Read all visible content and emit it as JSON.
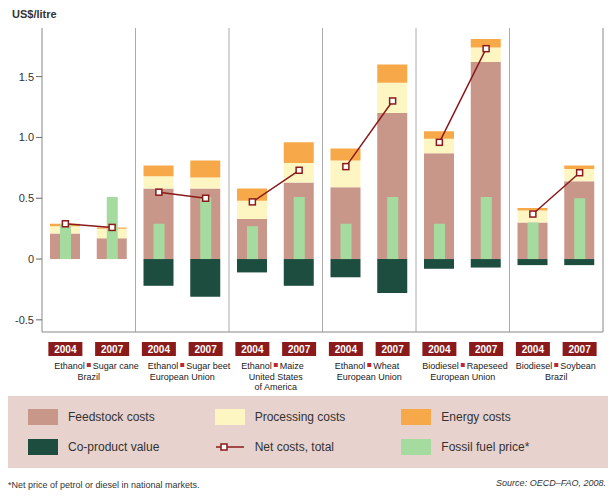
{
  "chart_data": {
    "type": "bar",
    "stacked": true,
    "y_label": "US$/litre",
    "categories": [
      "2004",
      "2007",
      "2004",
      "2007",
      "2004",
      "2007",
      "2004",
      "2007",
      "2004",
      "2007",
      "2004",
      "2007"
    ],
    "groups": [
      {
        "fuel": "Ethanol",
        "feedstock": "Sugar cane",
        "region_lines": [
          "Brazil"
        ]
      },
      {
        "fuel": "Ethanol",
        "feedstock": "Sugar beet",
        "region_lines": [
          "European Union"
        ]
      },
      {
        "fuel": "Ethanol",
        "feedstock": "Maize",
        "region_lines": [
          "United States",
          "of America"
        ]
      },
      {
        "fuel": "Ethanol",
        "feedstock": "Wheat",
        "region_lines": [
          "European Union"
        ]
      },
      {
        "fuel": "Biodiesel",
        "feedstock": "Rapeseed",
        "region_lines": [
          "European Union"
        ]
      },
      {
        "fuel": "Biodiesel",
        "feedstock": "Soybean",
        "region_lines": [
          "Brazil"
        ]
      }
    ],
    "series": [
      {
        "name": "Feedstock costs",
        "color": "#c9968a",
        "values": [
          0.21,
          0.17,
          0.58,
          0.58,
          0.33,
          0.63,
          0.59,
          1.2,
          0.87,
          1.62,
          0.3,
          0.64
        ]
      },
      {
        "name": "Processing costs",
        "color": "#fdf6c3",
        "values": [
          0.06,
          0.08,
          0.1,
          0.09,
          0.15,
          0.16,
          0.22,
          0.25,
          0.12,
          0.12,
          0.1,
          0.1
        ]
      },
      {
        "name": "Energy costs",
        "color": "#f7a94a",
        "values": [
          0.02,
          0.01,
          0.09,
          0.14,
          0.1,
          0.17,
          0.1,
          0.15,
          0.06,
          0.07,
          0.02,
          0.03
        ]
      },
      {
        "name": "Co-product value",
        "color": "#1d4d3e",
        "values": [
          0,
          0,
          -0.22,
          -0.31,
          -0.11,
          -0.22,
          -0.15,
          -0.28,
          -0.08,
          -0.07,
          -0.05,
          -0.05
        ]
      },
      {
        "name": "Net costs, total",
        "type": "line",
        "marker": "square",
        "color": "#8b1a1a",
        "values": [
          0.29,
          0.26,
          0.55,
          0.5,
          0.47,
          0.73,
          0.76,
          1.3,
          0.96,
          1.73,
          0.37,
          0.71
        ]
      },
      {
        "name": "Fossil fuel price*",
        "type": "overlay",
        "color": "#a6dba0",
        "values": [
          0.29,
          0.51,
          0.29,
          0.51,
          0.27,
          0.51,
          0.29,
          0.51,
          0.29,
          0.51,
          0.3,
          0.5
        ]
      }
    ],
    "ylim": [
      -0.6,
      1.9
    ],
    "yticks": [
      -0.5,
      0,
      0.5,
      {
        "value": 1,
        "label": "1.0"
      },
      1.5
    ],
    "grid": false,
    "legend": "bottom",
    "footnote": "*Net price of petrol or diesel in national markets.",
    "source": "Source: OECD–FAO, 2008."
  }
}
